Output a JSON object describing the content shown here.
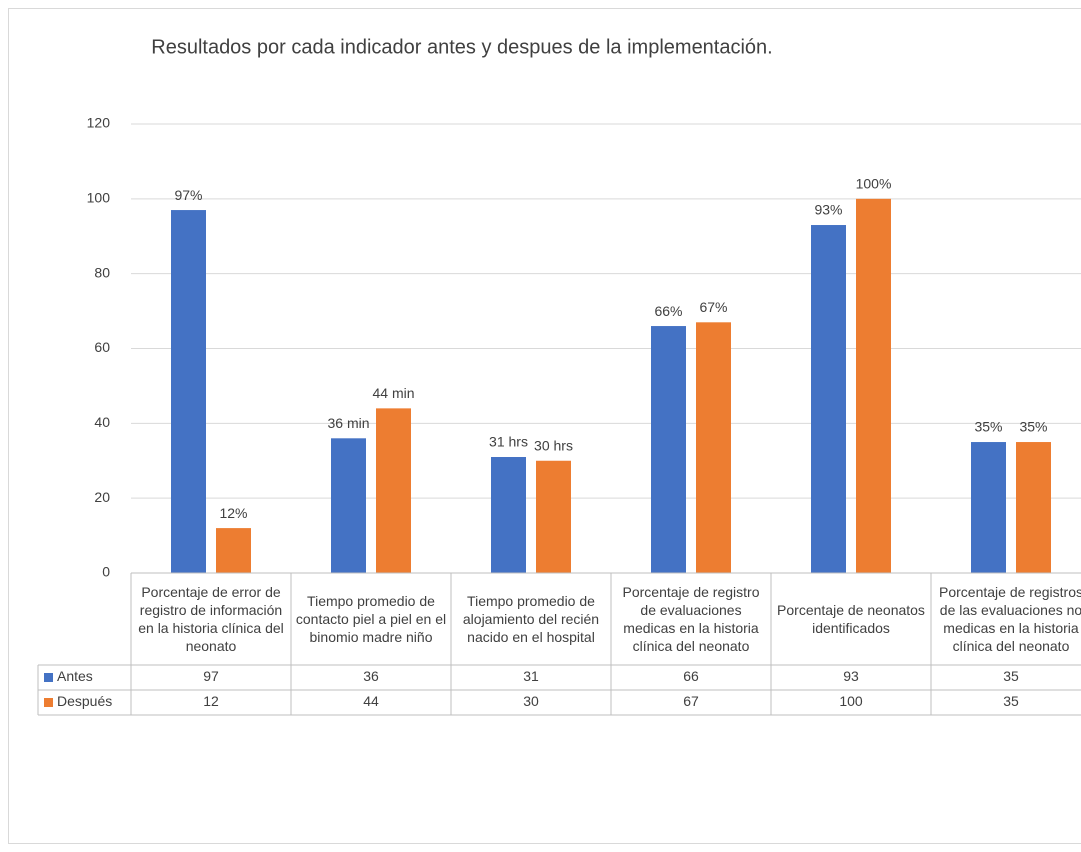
{
  "chart_data": {
    "type": "bar",
    "title": "Resultados por cada indicador antes y despues de la implementación.",
    "categories": [
      "Porcentaje de error de registro de información en la historia clínica del neonato",
      "Tiempo promedio de contacto piel a piel en el binomio madre niño",
      "Tiempo promedio de alojamiento del recién nacido en el hospital",
      "Porcentaje de registro de evaluaciones medicas en la historia clínica del neonato",
      "Porcentaje de neonatos identificados",
      "Porcentaje de registros de las evaluaciones no medicas en la historia clínica del neonato"
    ],
    "series": [
      {
        "name": "Antes",
        "color": "#4472c4",
        "values": [
          97,
          36,
          31,
          66,
          93,
          35
        ],
        "value_labels": [
          "97%",
          "36 min",
          "31 hrs",
          "66%",
          "93%",
          "35%"
        ]
      },
      {
        "name": "Después",
        "color": "#ed7d31",
        "values": [
          12,
          44,
          30,
          67,
          100,
          35
        ],
        "value_labels": [
          "12%",
          "44 min",
          "30 hrs",
          "67%",
          "100%",
          "35%"
        ]
      }
    ],
    "ylim": [
      0,
      120
    ],
    "yticks": [
      0,
      20,
      40,
      60,
      80,
      100,
      120
    ],
    "grid": true,
    "data_table": true
  }
}
